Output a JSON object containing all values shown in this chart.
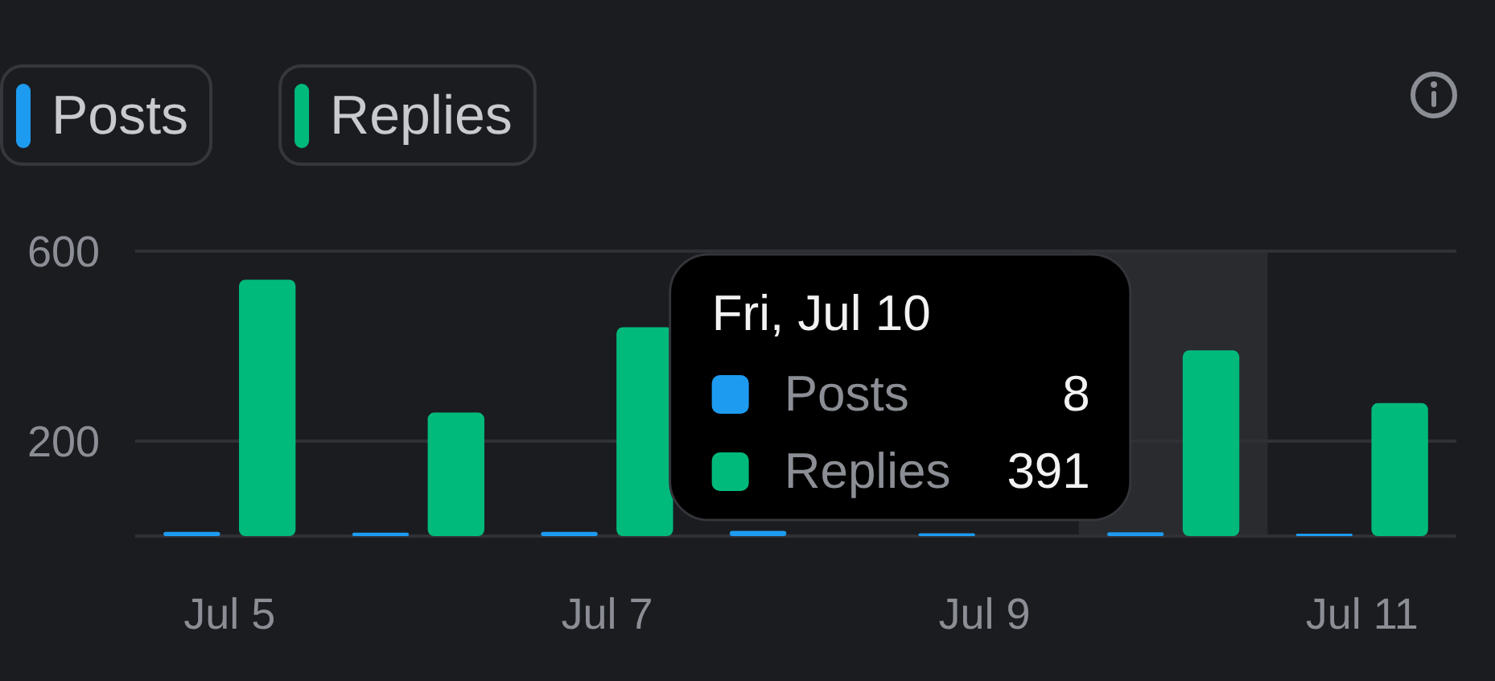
{
  "chart_data": {
    "type": "bar",
    "categories": [
      "Jul 5",
      null,
      "Jul 7",
      null,
      "Jul 9",
      null,
      "Jul 11"
    ],
    "series": [
      {
        "name": "Posts",
        "color": "#1d9bf0",
        "values": [
          9,
          7,
          9,
          11,
          6,
          8,
          5
        ]
      },
      {
        "name": "Replies",
        "color": "#00ba7c",
        "values": [
          540,
          260,
          440,
          null,
          null,
          391,
          280
        ]
      }
    ],
    "ylim": [
      0,
      600
    ],
    "yticks": [
      {
        "value": 0,
        "label": null
      },
      200,
      600
    ],
    "grid": "y",
    "legend": "top left",
    "annotations": [
      "Fri, Jul 10",
      "Posts",
      "8",
      "Replies",
      "391"
    ]
  }
}
